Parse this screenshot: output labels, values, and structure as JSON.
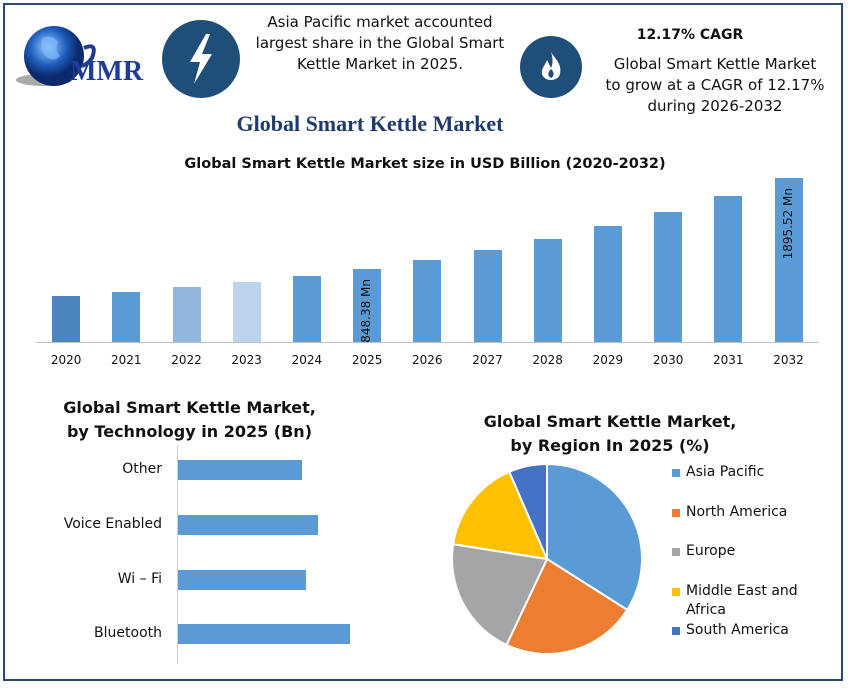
{
  "brand": {
    "logo_text": "MMR"
  },
  "highlights": {
    "left": {
      "icon": "lightning-bolt-icon",
      "text": "Asia Pacific market accounted largest share in the Global Smart Kettle Market in 2025."
    },
    "right": {
      "icon": "flame-icon",
      "heading": "12.17% CAGR",
      "text": "Global Smart Kettle Market to grow at a CAGR of 12.17% during 2026-2032"
    }
  },
  "main_title": "Global Smart Kettle Market",
  "colors": {
    "primary_bar": "#5b9bd5",
    "frame": "#2b4a6b",
    "icon_circle": "#1f4e79",
    "title": "#1f3b6b"
  },
  "chart_data": [
    {
      "type": "bar",
      "title": "Global Smart Kettle Market size in USD Billion (2020-2032)",
      "categories": [
        "2020",
        "2021",
        "2022",
        "2023",
        "2024",
        "2025",
        "2026",
        "2027",
        "2028",
        "2029",
        "2030",
        "2031",
        "2032"
      ],
      "values": [
        530,
        580,
        640,
        700,
        770,
        848.38,
        951,
        1067,
        1197,
        1343,
        1506,
        1690,
        1895.52
      ],
      "bar_colors": [
        "#4a86bd",
        "#5b9bd5",
        "#93b6df",
        "#bdd2ec",
        "#5b9bd5",
        "#5b9bd5",
        "#5b9bd5",
        "#5b9bd5",
        "#5b9bd5",
        "#5b9bd5",
        "#5b9bd5",
        "#5b9bd5",
        "#5b9bd5"
      ],
      "data_labels": {
        "2025": "848.38 Mn",
        "2032": "1895.52 Mn"
      },
      "ylim": [
        0,
        1900
      ],
      "grid": false
    },
    {
      "type": "bar",
      "orientation": "horizontal",
      "title": "Global Smart Kettle Market, by Technology in 2025 (Bn)",
      "categories": [
        "Other",
        "Voice Enabled",
        "Wi – Fi",
        "Bluetooth"
      ],
      "values": [
        1.24,
        1.4,
        1.28,
        1.72
      ],
      "color": "#5b9bd5",
      "grid": false
    },
    {
      "type": "pie",
      "title": "Global Smart Kettle Market, by Region In 2025 (%)",
      "categories": [
        "Asia Pacific",
        "North America",
        "Europe",
        "Middle East and Africa",
        "South America"
      ],
      "values": [
        34,
        23,
        20.5,
        16,
        6.5
      ],
      "colors": [
        "#5b9bd5",
        "#ed7d31",
        "#a5a5a5",
        "#ffc000",
        "#4472c4"
      ],
      "legend": "right"
    }
  ]
}
